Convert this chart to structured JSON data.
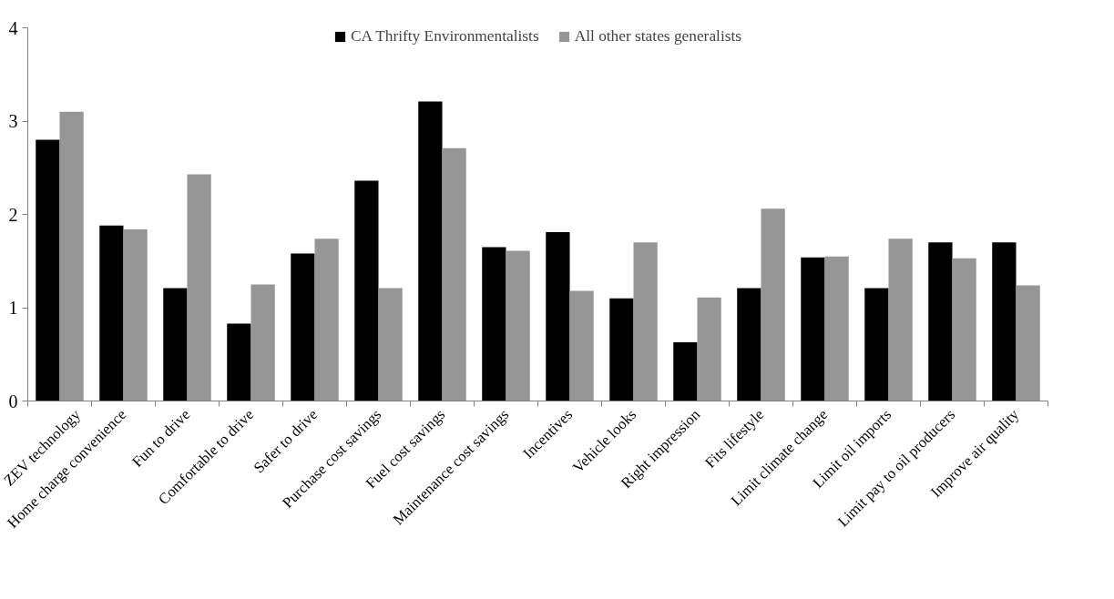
{
  "chart_data": {
    "type": "bar",
    "categories": [
      "ZEV technology",
      "Home charge convenience",
      "Fun to drive",
      "Comfortable to drive",
      "Safer to drive",
      "Purchase cost savings",
      "Fuel cost savings",
      "Maintenance cost savings",
      "Incentives",
      "Vehicle looks",
      "Right impression",
      "Fits lifestyle",
      "Limit climate change",
      "Limit oil imports",
      "Limit pay to oil producers",
      "Improve air quality"
    ],
    "series": [
      {
        "name": "CA Thrifty Environmentalists",
        "color": "#000000",
        "values": [
          2.8,
          1.88,
          1.21,
          0.83,
          1.58,
          2.36,
          3.21,
          1.65,
          1.81,
          1.1,
          0.63,
          1.21,
          1.54,
          1.21,
          1.7,
          1.7
        ]
      },
      {
        "name": "All other states generalists",
        "color": "#969696",
        "values": [
          3.1,
          1.84,
          2.43,
          1.25,
          1.74,
          1.21,
          2.71,
          1.61,
          1.18,
          1.7,
          1.11,
          2.06,
          1.55,
          1.74,
          1.53,
          1.24
        ]
      }
    ],
    "ylim": [
      0,
      4
    ],
    "yticks": [
      0,
      1,
      2,
      3,
      4
    ],
    "grid": false,
    "legend": "top"
  }
}
